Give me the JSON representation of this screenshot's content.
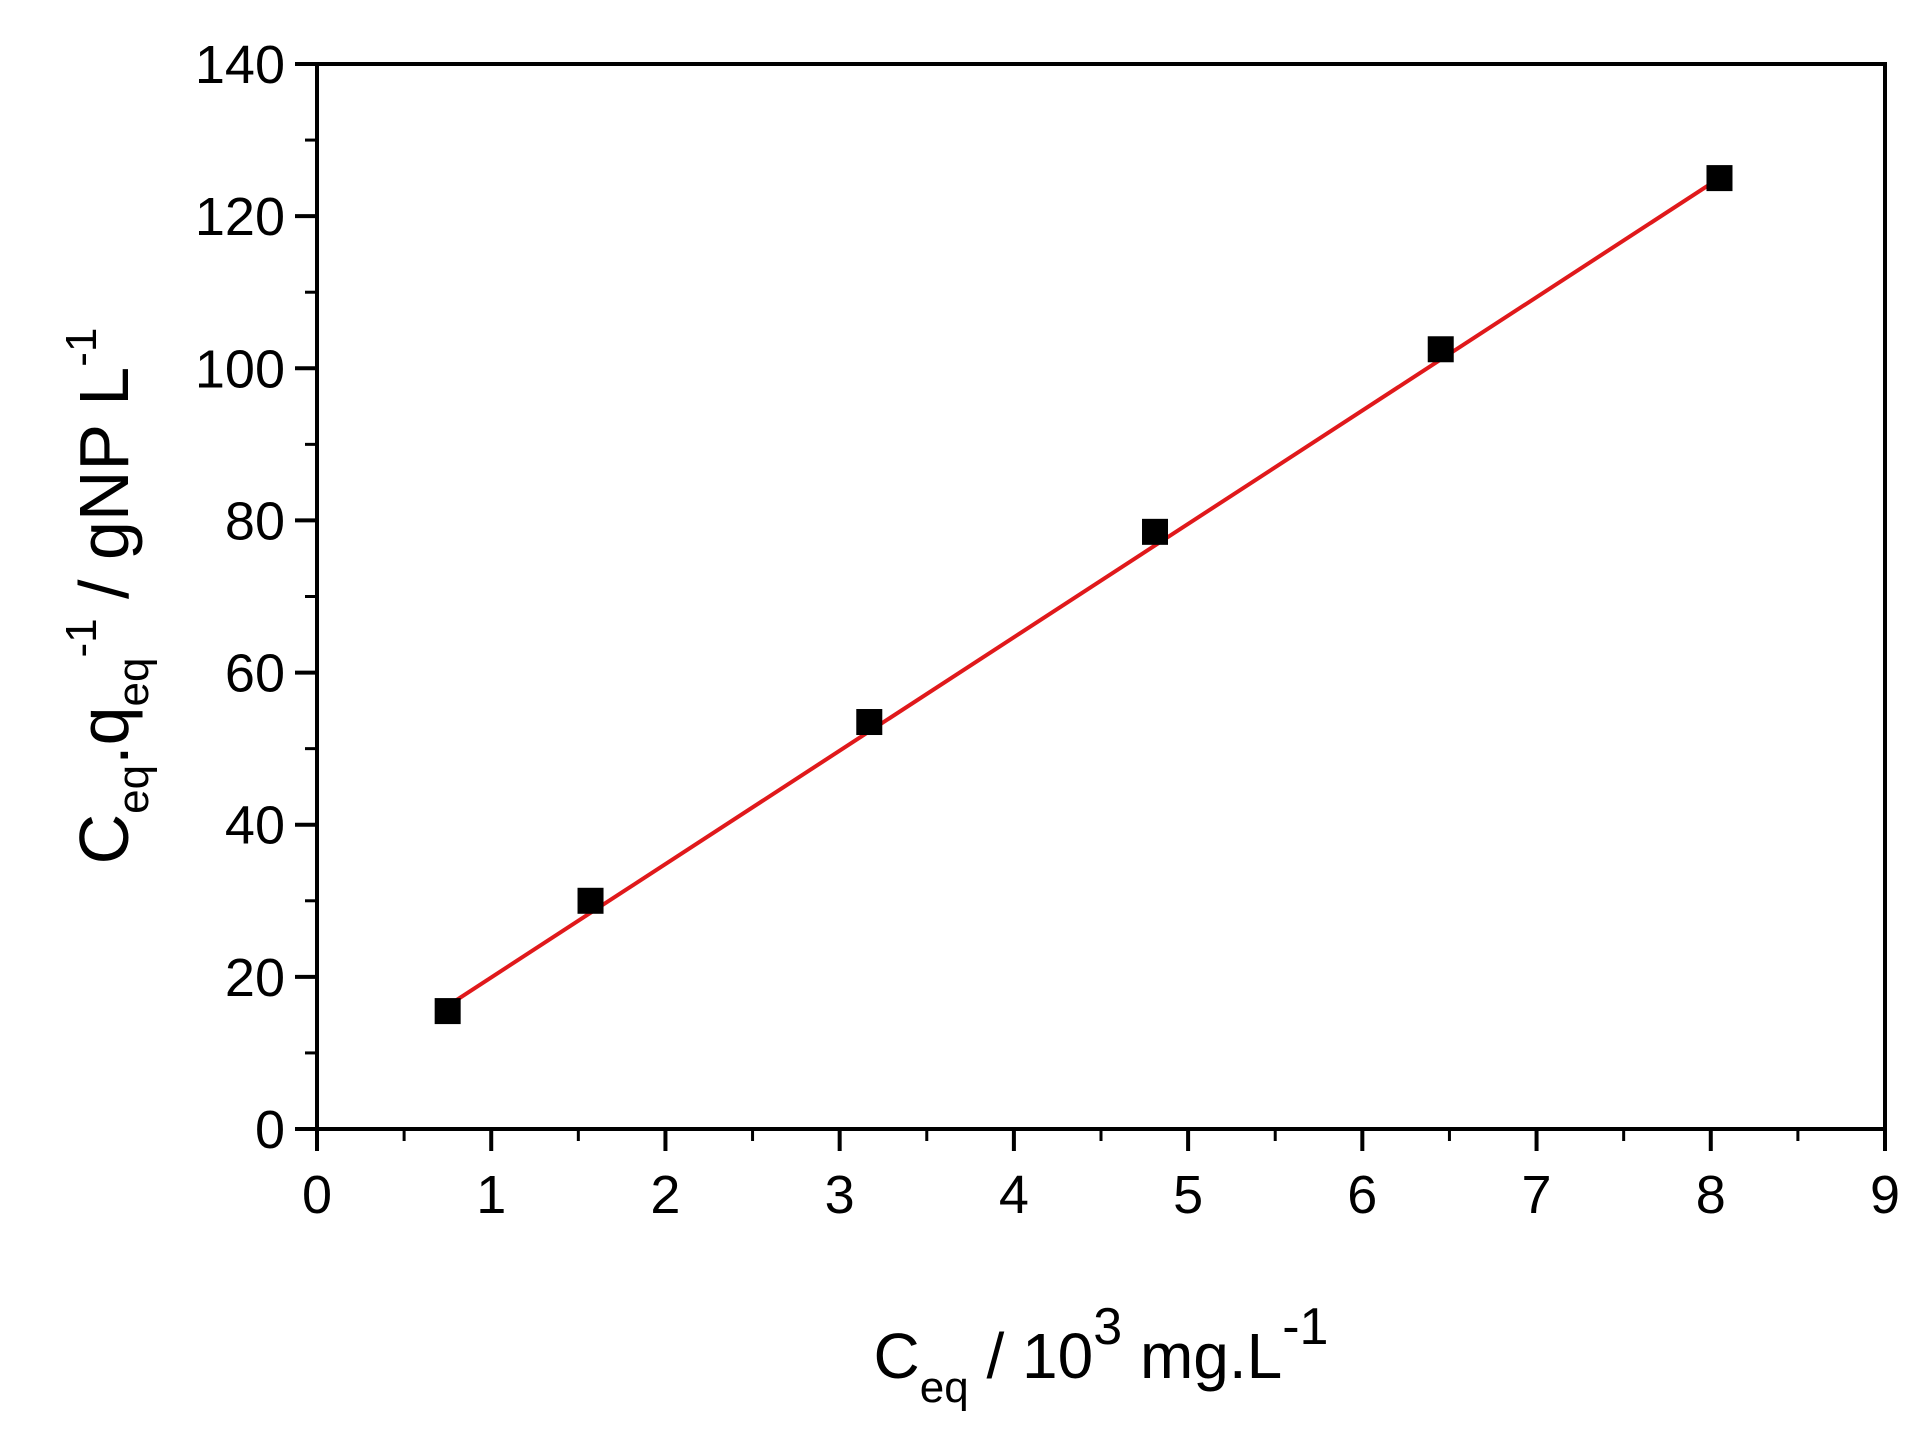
{
  "chart_data": {
    "type": "scatter",
    "title": "",
    "xlabel": {
      "main": "C",
      "sub": "eq",
      "mid": " / 10",
      "sup": "3",
      "after": " mg.L",
      "sup2": "-1"
    },
    "ylabel": {
      "c": "C",
      "c_sub": "eq",
      "dot_q": ".q",
      "q_sub": "eq",
      "q_sup": "-1",
      "after": " / gNP L",
      "after_sup": "-1"
    },
    "xlim": [
      0,
      9
    ],
    "ylim": [
      0,
      140
    ],
    "xticks": [
      "0",
      "1",
      "2",
      "3",
      "4",
      "5",
      "6",
      "7",
      "8",
      "9"
    ],
    "yticks": [
      "0",
      "20",
      "40",
      "60",
      "80",
      "100",
      "120",
      "140"
    ],
    "x_minor_step": 0.5,
    "y_minor_step": 10,
    "grid": false,
    "series": [
      {
        "marker": "square",
        "color": "#000000",
        "x": [
          0.75,
          1.57,
          3.17,
          4.81,
          6.45,
          8.05
        ],
        "y": [
          15.5,
          30.0,
          53.5,
          78.5,
          102.5,
          125.0
        ]
      }
    ],
    "fit_line": {
      "color": "#e0191b",
      "x": [
        0.75,
        8.05
      ],
      "y": [
        16.2,
        125.0
      ]
    }
  }
}
